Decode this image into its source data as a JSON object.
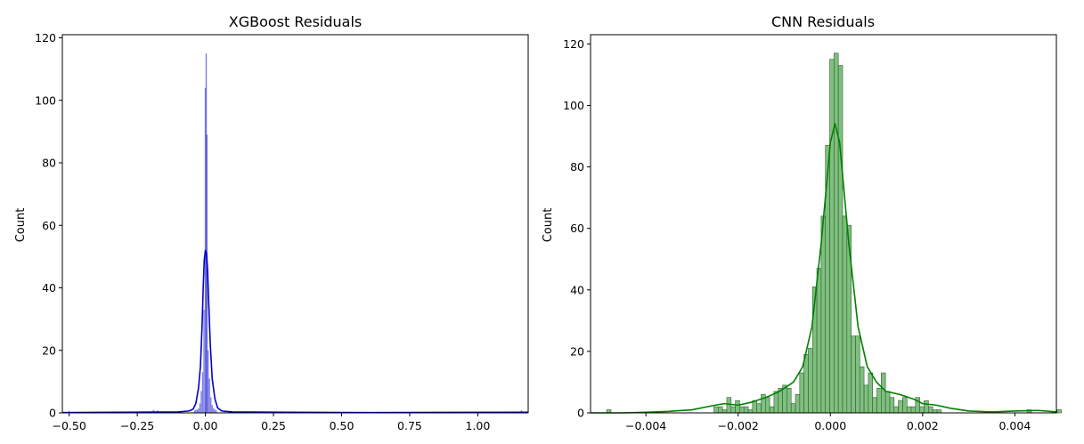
{
  "chart_data": [
    {
      "type": "bar",
      "title": "XGBoost Residuals",
      "xlabel": "",
      "ylabel": "Count",
      "xlim": [
        -0.525,
        1.185
      ],
      "ylim": [
        0,
        121
      ],
      "xticks": [
        -0.5,
        -0.25,
        0.0,
        0.25,
        0.5,
        0.75,
        1.0
      ],
      "xtick_labels": [
        "−0.50",
        "−0.25",
        "0.00",
        "0.25",
        "0.50",
        "0.75",
        "1.00"
      ],
      "yticks": [
        0,
        20,
        40,
        60,
        80,
        100,
        120
      ],
      "ytick_labels": [
        "0",
        "20",
        "40",
        "60",
        "80",
        "100",
        "120"
      ],
      "grid": false,
      "legend": "none",
      "bar_color": "#0000cd",
      "line_color": "#0000cd",
      "bins": [
        {
          "x": -0.5,
          "y": 0.6
        },
        {
          "x": -0.19,
          "y": 1
        },
        {
          "x": -0.175,
          "y": 0.8
        },
        {
          "x": -0.04,
          "y": 0.7
        },
        {
          "x": -0.035,
          "y": 1
        },
        {
          "x": -0.03,
          "y": 1
        },
        {
          "x": -0.025,
          "y": 1.4
        },
        {
          "x": -0.02,
          "y": 3
        },
        {
          "x": -0.015,
          "y": 7
        },
        {
          "x": -0.01,
          "y": 13
        },
        {
          "x": -0.005,
          "y": 33
        },
        {
          "x": 0.0,
          "y": 104
        },
        {
          "x": 0.003,
          "y": 115
        },
        {
          "x": 0.006,
          "y": 89
        },
        {
          "x": 0.01,
          "y": 20
        },
        {
          "x": 0.015,
          "y": 11
        },
        {
          "x": 0.02,
          "y": 5
        },
        {
          "x": 0.025,
          "y": 2.5
        },
        {
          "x": 0.03,
          "y": 1.5
        },
        {
          "x": 0.035,
          "y": 1
        },
        {
          "x": 0.04,
          "y": 0.8
        },
        {
          "x": 0.07,
          "y": 0.7
        },
        {
          "x": 0.085,
          "y": 0.5
        },
        {
          "x": 1.16,
          "y": 0.8
        }
      ],
      "kde": {
        "x": [
          -0.525,
          -0.3,
          -0.1,
          -0.06,
          -0.045,
          -0.035,
          -0.025,
          -0.018,
          -0.012,
          -0.008,
          -0.004,
          0.0,
          0.004,
          0.008,
          0.012,
          0.018,
          0.025,
          0.035,
          0.045,
          0.06,
          0.1,
          0.3,
          0.6,
          1.185
        ],
        "y": [
          0.1,
          0.2,
          0.3,
          0.6,
          1.2,
          3,
          8,
          15,
          28,
          40,
          49,
          52,
          51,
          46,
          36,
          22,
          11,
          4.5,
          1.6,
          0.6,
          0.3,
          0.2,
          0.1,
          0.2
        ]
      }
    },
    {
      "type": "bar",
      "title": "CNN Residuals",
      "xlabel": "",
      "ylabel": "Count",
      "xlim": [
        -0.0052,
        0.0049
      ],
      "ylim": [
        0,
        123
      ],
      "xticks": [
        -0.004,
        -0.002,
        0.0,
        0.002,
        0.004
      ],
      "xtick_labels": [
        "−0.004",
        "−0.002",
        "0.000",
        "0.002",
        "0.004"
      ],
      "yticks": [
        0,
        20,
        40,
        60,
        80,
        100,
        120
      ],
      "ytick_labels": [
        "0",
        "20",
        "40",
        "60",
        "80",
        "100",
        "120"
      ],
      "grid": false,
      "legend": "none",
      "bar_color": "#7fbf7f",
      "line_color": "#008000",
      "bin_start": -0.00485,
      "bin_width": 9.3e-05,
      "counts": [
        1,
        0,
        0,
        0,
        0,
        0,
        0,
        0,
        0,
        0,
        0,
        0,
        0,
        0,
        0,
        0,
        0,
        0,
        0,
        0,
        0,
        0,
        0,
        0,
        0,
        2,
        2,
        1,
        5,
        2,
        4,
        2,
        2,
        1,
        4,
        3,
        6,
        5,
        2,
        7,
        8,
        9,
        8,
        3,
        6,
        13,
        19,
        21,
        41,
        47,
        64,
        87,
        115,
        117,
        113,
        64,
        61,
        25,
        25,
        15,
        9,
        13,
        5,
        8,
        13,
        7,
        5,
        2,
        4,
        5,
        2,
        2,
        5,
        2,
        4,
        2,
        1,
        1,
        0,
        0,
        0,
        0,
        0,
        0,
        0,
        0,
        0,
        0,
        0,
        0,
        0,
        0,
        0,
        0,
        0,
        0,
        0,
        0,
        1,
        0,
        0,
        0,
        0,
        0,
        0,
        1
      ],
      "kde": {
        "x": [
          -0.0052,
          -0.0045,
          -0.004,
          -0.0035,
          -0.003,
          -0.0025,
          -0.0023,
          -0.002,
          -0.0017,
          -0.0014,
          -0.0011,
          -0.0008,
          -0.0006,
          -0.0004,
          -0.0002,
          0.0,
          0.0001,
          0.0002,
          0.0004,
          0.0006,
          0.0008,
          0.001,
          0.0012,
          0.0015,
          0.0018,
          0.002,
          0.0023,
          0.0026,
          0.003,
          0.0035,
          0.004,
          0.0045,
          0.0049
        ],
        "y": [
          0,
          0,
          0.2,
          0.5,
          1,
          2.5,
          3,
          2.5,
          3.5,
          5,
          7,
          10,
          15,
          28,
          55,
          88,
          94,
          88,
          55,
          28,
          15,
          10,
          7,
          6,
          4.5,
          3,
          2.5,
          1.5,
          0.6,
          0.3,
          0.6,
          0.8,
          0.3
        ]
      }
    }
  ]
}
